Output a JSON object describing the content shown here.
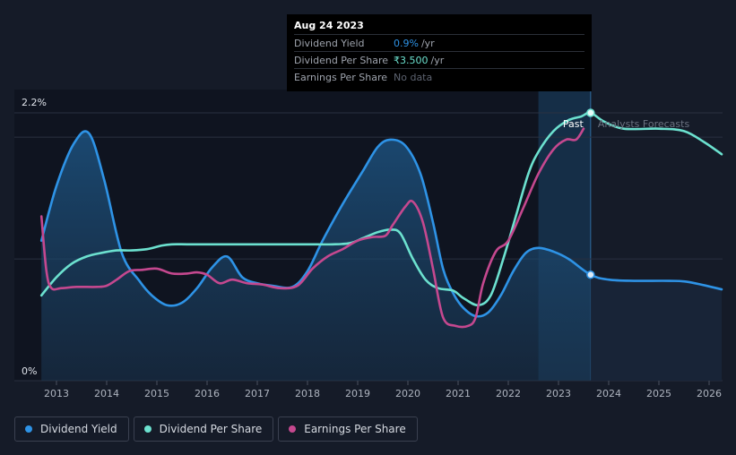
{
  "chart_data": {
    "type": "line",
    "title": "",
    "xlabel": "",
    "ylabel": "",
    "x_ticks": [
      "2013",
      "2014",
      "2015",
      "2016",
      "2017",
      "2018",
      "2019",
      "2020",
      "2021",
      "2022",
      "2023",
      "2024",
      "2025",
      "2026"
    ],
    "y_ticks": [
      "2.2%",
      "0%"
    ],
    "ylim": [
      0,
      2.2
    ],
    "xlim": [
      2012.3,
      2026.25
    ],
    "past_start": 2022.6,
    "now": 2023.64,
    "regions": {
      "past": "Past",
      "forecast": "Analysts Forecasts"
    },
    "series": [
      {
        "name": "Dividend Yield",
        "color": "#2e93e6",
        "points": [
          [
            2012.7,
            1.15
          ],
          [
            2013.0,
            1.6
          ],
          [
            2013.35,
            1.95
          ],
          [
            2013.65,
            2.03
          ],
          [
            2013.95,
            1.65
          ],
          [
            2014.3,
            1.05
          ],
          [
            2014.65,
            0.82
          ],
          [
            2014.9,
            0.7
          ],
          [
            2015.2,
            0.62
          ],
          [
            2015.5,
            0.64
          ],
          [
            2015.8,
            0.76
          ],
          [
            2016.1,
            0.93
          ],
          [
            2016.4,
            1.02
          ],
          [
            2016.7,
            0.85
          ],
          [
            2017.0,
            0.8
          ],
          [
            2017.3,
            0.78
          ],
          [
            2017.7,
            0.77
          ],
          [
            2018.0,
            0.9
          ],
          [
            2018.3,
            1.15
          ],
          [
            2018.7,
            1.45
          ],
          [
            2019.1,
            1.72
          ],
          [
            2019.4,
            1.92
          ],
          [
            2019.65,
            1.98
          ],
          [
            2019.95,
            1.93
          ],
          [
            2020.25,
            1.7
          ],
          [
            2020.5,
            1.3
          ],
          [
            2020.7,
            0.92
          ],
          [
            2020.9,
            0.72
          ],
          [
            2021.1,
            0.6
          ],
          [
            2021.35,
            0.53
          ],
          [
            2021.6,
            0.56
          ],
          [
            2021.85,
            0.7
          ],
          [
            2022.1,
            0.9
          ],
          [
            2022.35,
            1.05
          ],
          [
            2022.6,
            1.09
          ],
          [
            2022.9,
            1.06
          ],
          [
            2023.2,
            1.0
          ],
          [
            2023.64,
            0.87
          ],
          [
            2024.0,
            0.83
          ],
          [
            2024.5,
            0.82
          ],
          [
            2025.2,
            0.82
          ],
          [
            2025.6,
            0.81
          ],
          [
            2026.25,
            0.75
          ]
        ]
      },
      {
        "name": "Dividend Per Share",
        "color": "#6ce1cf",
        "points": [
          [
            2012.7,
            0.7
          ],
          [
            2013.0,
            0.85
          ],
          [
            2013.3,
            0.96
          ],
          [
            2013.6,
            1.02
          ],
          [
            2013.9,
            1.05
          ],
          [
            2014.2,
            1.07
          ],
          [
            2014.5,
            1.07
          ],
          [
            2014.8,
            1.08
          ],
          [
            2015.1,
            1.11
          ],
          [
            2015.3,
            1.12
          ],
          [
            2015.6,
            1.12
          ],
          [
            2016.0,
            1.12
          ],
          [
            2016.5,
            1.12
          ],
          [
            2017.0,
            1.12
          ],
          [
            2017.5,
            1.12
          ],
          [
            2018.0,
            1.12
          ],
          [
            2018.5,
            1.12
          ],
          [
            2018.85,
            1.13
          ],
          [
            2019.1,
            1.17
          ],
          [
            2019.4,
            1.22
          ],
          [
            2019.65,
            1.24
          ],
          [
            2019.85,
            1.21
          ],
          [
            2020.1,
            1.0
          ],
          [
            2020.35,
            0.83
          ],
          [
            2020.6,
            0.76
          ],
          [
            2020.9,
            0.74
          ],
          [
            2021.1,
            0.68
          ],
          [
            2021.4,
            0.62
          ],
          [
            2021.65,
            0.7
          ],
          [
            2021.9,
            1.0
          ],
          [
            2022.15,
            1.35
          ],
          [
            2022.4,
            1.7
          ],
          [
            2022.6,
            1.88
          ],
          [
            2022.9,
            2.05
          ],
          [
            2023.2,
            2.14
          ],
          [
            2023.45,
            2.17
          ],
          [
            2023.64,
            2.2
          ],
          [
            2023.9,
            2.13
          ],
          [
            2024.3,
            2.07
          ],
          [
            2025.0,
            2.07
          ],
          [
            2025.5,
            2.05
          ],
          [
            2025.9,
            1.96
          ],
          [
            2026.25,
            1.86
          ]
        ]
      },
      {
        "name": "Earnings Per Share",
        "color": "#c5488f",
        "points": [
          [
            2012.7,
            1.35
          ],
          [
            2012.8,
            0.9
          ],
          [
            2012.9,
            0.76
          ],
          [
            2013.1,
            0.76
          ],
          [
            2013.4,
            0.77
          ],
          [
            2013.8,
            0.77
          ],
          [
            2014.0,
            0.78
          ],
          [
            2014.2,
            0.83
          ],
          [
            2014.45,
            0.9
          ],
          [
            2014.7,
            0.91
          ],
          [
            2015.0,
            0.92
          ],
          [
            2015.3,
            0.88
          ],
          [
            2015.6,
            0.88
          ],
          [
            2015.8,
            0.89
          ],
          [
            2016.0,
            0.87
          ],
          [
            2016.25,
            0.8
          ],
          [
            2016.5,
            0.83
          ],
          [
            2016.8,
            0.8
          ],
          [
            2017.1,
            0.79
          ],
          [
            2017.45,
            0.76
          ],
          [
            2017.8,
            0.78
          ],
          [
            2018.1,
            0.92
          ],
          [
            2018.4,
            1.02
          ],
          [
            2018.7,
            1.08
          ],
          [
            2019.0,
            1.15
          ],
          [
            2019.3,
            1.18
          ],
          [
            2019.55,
            1.19
          ],
          [
            2019.7,
            1.28
          ],
          [
            2019.95,
            1.43
          ],
          [
            2020.1,
            1.47
          ],
          [
            2020.3,
            1.3
          ],
          [
            2020.5,
            0.92
          ],
          [
            2020.7,
            0.52
          ],
          [
            2020.95,
            0.45
          ],
          [
            2021.2,
            0.45
          ],
          [
            2021.35,
            0.52
          ],
          [
            2021.5,
            0.8
          ],
          [
            2021.75,
            1.06
          ],
          [
            2022.0,
            1.15
          ],
          [
            2022.3,
            1.42
          ],
          [
            2022.6,
            1.7
          ],
          [
            2022.9,
            1.9
          ],
          [
            2023.15,
            1.98
          ],
          [
            2023.35,
            1.98
          ],
          [
            2023.5,
            2.07
          ]
        ]
      }
    ],
    "tooltip": {
      "date": "Aug 24 2023",
      "rows": [
        {
          "label": "Dividend Yield",
          "value": "0.9%",
          "unit": "/yr",
          "color": "#2e93e6"
        },
        {
          "label": "Dividend Per Share",
          "value": "₹3.500",
          "unit": "/yr",
          "color": "#6ce1cf"
        },
        {
          "label": "Earnings Per Share",
          "value": "No data",
          "unit": "",
          "color": "#5d6370"
        }
      ]
    },
    "legend": [
      {
        "label": "Dividend Yield",
        "color": "#2e93e6"
      },
      {
        "label": "Dividend Per Share",
        "color": "#6ce1cf"
      },
      {
        "label": "Earnings Per Share",
        "color": "#c5488f"
      }
    ]
  }
}
